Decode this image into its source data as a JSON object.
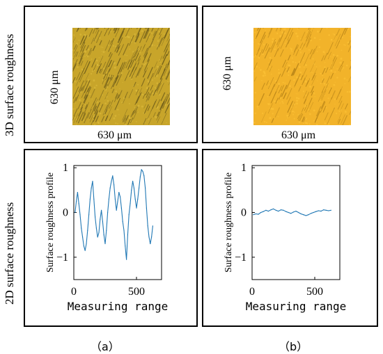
{
  "row_labels": {
    "top": "3D surface roughness",
    "bottom": "2D surface roughness"
  },
  "panel_a": {
    "dim_x": "630 μm",
    "dim_y": "630 μm",
    "caption": "（a）",
    "texture_colors": {
      "base": "#c8a52a",
      "dark": "#6b5a1a",
      "light": "#e0c040"
    }
  },
  "panel_b": {
    "dim_x": "630 μm",
    "dim_y": "630 μm",
    "caption": "（b）",
    "texture_colors": {
      "base": "#f2b32a",
      "dark": "#b88418",
      "light": "#ffc83a"
    }
  },
  "chart_data": [
    {
      "type": "line",
      "panel": "a",
      "xlabel": "Measuring range",
      "ylabel": "Surface roughness profile",
      "xlim": [
        0,
        700
      ],
      "ylim": [
        -1.5,
        1.05
      ],
      "xticks": [
        0,
        500
      ],
      "yticks": [
        1,
        0,
        -1
      ],
      "line_color": "#1f77b4",
      "series": [
        {
          "x": [
            10,
            20,
            30,
            40,
            50,
            60,
            70,
            80,
            90,
            100,
            110,
            120,
            130,
            140,
            150,
            160,
            170,
            180,
            190,
            200,
            210,
            220,
            230,
            240,
            250,
            260,
            270,
            280,
            290,
            300,
            310,
            320,
            330,
            340,
            350,
            360,
            370,
            380,
            390,
            400,
            410,
            420,
            430,
            440,
            450,
            460,
            470,
            480,
            490,
            500,
            510,
            520,
            530,
            540,
            550,
            560,
            570,
            580,
            590,
            600,
            610,
            620,
            630
          ],
          "y": [
            0.0,
            0.25,
            0.45,
            0.2,
            -0.05,
            -0.35,
            -0.55,
            -0.75,
            -0.85,
            -0.7,
            -0.4,
            -0.05,
            0.3,
            0.55,
            0.7,
            0.3,
            -0.1,
            -0.35,
            -0.55,
            -0.45,
            -0.15,
            0.05,
            -0.2,
            -0.5,
            -0.7,
            -0.4,
            0.0,
            0.3,
            0.55,
            0.7,
            0.82,
            0.62,
            0.3,
            0.05,
            0.25,
            0.45,
            0.35,
            0.1,
            -0.2,
            -0.4,
            -0.75,
            -1.05,
            -0.5,
            -0.05,
            0.2,
            0.5,
            0.7,
            0.55,
            0.3,
            0.1,
            0.3,
            0.55,
            0.8,
            0.96,
            0.92,
            0.82,
            0.55,
            0.1,
            -0.3,
            -0.55,
            -0.7,
            -0.55,
            -0.3
          ]
        }
      ]
    },
    {
      "type": "line",
      "panel": "b",
      "xlabel": "Measuring range",
      "ylabel": "Surface roughness profile",
      "xlim": [
        0,
        700
      ],
      "ylim": [
        -1.5,
        1.05
      ],
      "xticks": [
        0,
        500
      ],
      "yticks": [
        1,
        0,
        -1
      ],
      "line_color": "#1f77b4",
      "series": [
        {
          "x": [
            10,
            30,
            50,
            70,
            90,
            110,
            130,
            150,
            170,
            190,
            210,
            230,
            250,
            270,
            290,
            310,
            330,
            350,
            370,
            390,
            410,
            430,
            450,
            470,
            490,
            510,
            530,
            550,
            570,
            590,
            610,
            630
          ],
          "y": [
            -0.05,
            -0.03,
            -0.04,
            0.0,
            0.02,
            0.05,
            0.03,
            0.06,
            0.08,
            0.05,
            0.03,
            0.06,
            0.05,
            0.02,
            0.0,
            -0.02,
            0.01,
            0.03,
            0.0,
            -0.03,
            -0.05,
            -0.07,
            -0.05,
            -0.02,
            0.0,
            0.02,
            0.04,
            0.03,
            0.06,
            0.05,
            0.04,
            0.05
          ]
        }
      ]
    }
  ]
}
